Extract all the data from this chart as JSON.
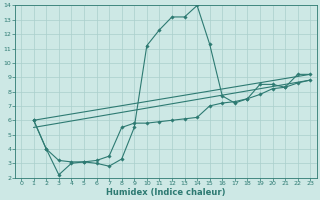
{
  "xlabel": "Humidex (Indice chaleur)",
  "xlim": [
    -0.5,
    23.5
  ],
  "ylim": [
    2,
    14
  ],
  "xticks": [
    0,
    1,
    2,
    3,
    4,
    5,
    6,
    7,
    8,
    9,
    10,
    11,
    12,
    13,
    14,
    15,
    16,
    17,
    18,
    19,
    20,
    21,
    22,
    23
  ],
  "yticks": [
    2,
    3,
    4,
    5,
    6,
    7,
    8,
    9,
    10,
    11,
    12,
    13,
    14
  ],
  "bg_color": "#cde8e5",
  "line_color": "#2d7a72",
  "grid_color": "#aacfcc",
  "lines": [
    {
      "x": [
        1,
        2,
        3,
        4,
        5,
        6,
        7,
        8,
        9,
        10,
        11,
        12,
        13,
        14,
        15,
        16,
        17,
        18,
        19,
        20,
        21,
        22,
        23
      ],
      "y": [
        6.0,
        4.0,
        3.2,
        3.1,
        3.1,
        3.0,
        2.8,
        3.3,
        5.5,
        11.2,
        12.3,
        13.2,
        13.2,
        14.0,
        11.3,
        7.7,
        7.2,
        7.5,
        8.5,
        8.5,
        8.3,
        9.2,
        9.2
      ],
      "markers": true
    },
    {
      "x": [
        1,
        2,
        3,
        4,
        5,
        6,
        7,
        8,
        9,
        10,
        11,
        12,
        13,
        14,
        15,
        16,
        17,
        18,
        19,
        20,
        21,
        22,
        23
      ],
      "y": [
        6.0,
        4.0,
        2.2,
        3.0,
        3.1,
        3.2,
        3.5,
        5.5,
        5.8,
        5.8,
        5.9,
        6.0,
        6.1,
        6.2,
        7.0,
        7.2,
        7.3,
        7.5,
        7.8,
        8.2,
        8.3,
        8.6,
        8.8
      ],
      "markers": true
    },
    {
      "x": [
        1,
        23
      ],
      "y": [
        5.5,
        8.8
      ],
      "markers": false
    },
    {
      "x": [
        1,
        23
      ],
      "y": [
        6.0,
        9.2
      ],
      "markers": false
    }
  ]
}
